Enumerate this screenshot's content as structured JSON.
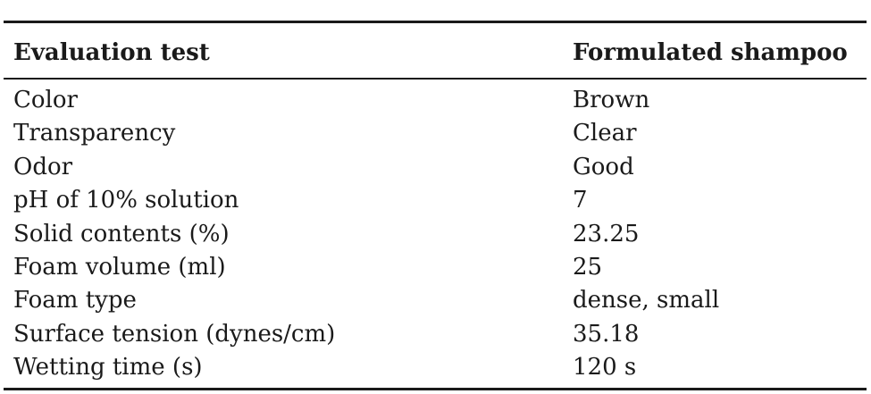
{
  "table": {
    "header": [
      "Evaluation test",
      "Formulated shampoo"
    ],
    "rows": [
      [
        "Color",
        "Brown"
      ],
      [
        "Transparency",
        "Clear"
      ],
      [
        "Odor",
        "Good"
      ],
      [
        "pH of 10% solution",
        "7"
      ],
      [
        "Solid contents (%)",
        "23.25"
      ],
      [
        "Foam volume (ml)",
        "25"
      ],
      [
        "Foam type",
        "dense, small"
      ],
      [
        "Surface tension (dynes/cm)",
        "35.18"
      ],
      [
        "Wetting time (s)",
        "120 s"
      ]
    ]
  }
}
